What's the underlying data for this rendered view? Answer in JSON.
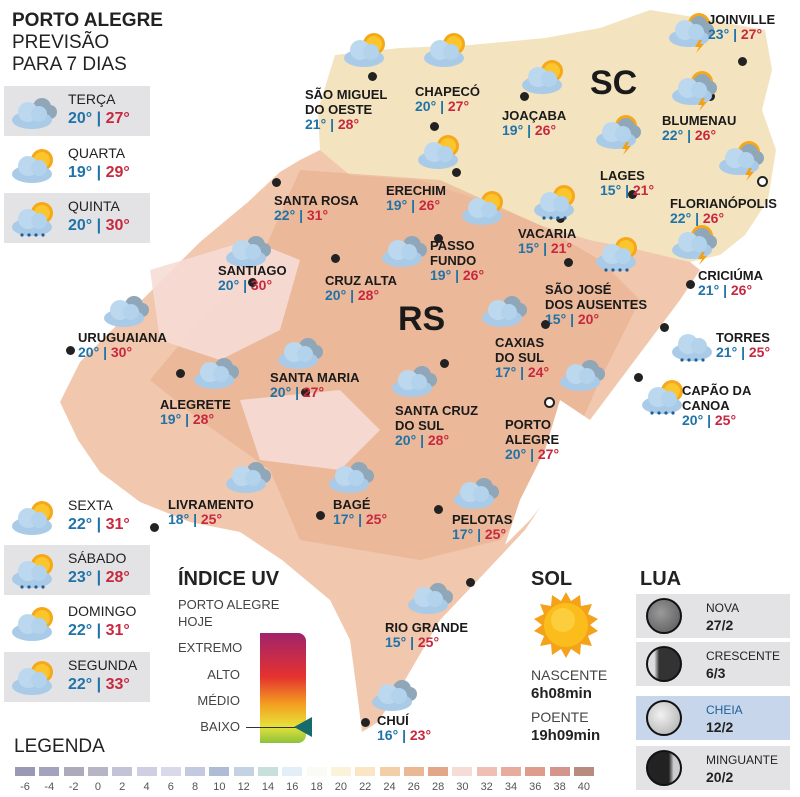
{
  "header": {
    "line1": "PORTO ALEGRE",
    "line2": "PREVISÃO",
    "line3": "PARA 7 DIAS"
  },
  "days": [
    {
      "name": "TERÇA",
      "min": "20°",
      "max": "27°",
      "icon": "cloudy"
    },
    {
      "name": "QUARTA",
      "min": "19°",
      "max": "29°",
      "icon": "sun-cloud"
    },
    {
      "name": "QUINTA",
      "min": "20°",
      "max": "30°",
      "icon": "sun-rain"
    },
    {
      "name": "SEXTA",
      "min": "22°",
      "max": "31°",
      "icon": "sun-cloud"
    },
    {
      "name": "SÁBADO",
      "min": "23°",
      "max": "28°",
      "icon": "sun-rain"
    },
    {
      "name": "DOMINGO",
      "min": "22°",
      "max": "31°",
      "icon": "sun-cloud"
    },
    {
      "name": "SEGUNDA",
      "min": "22°",
      "max": "33°",
      "icon": "sun-cloud"
    }
  ],
  "regions": {
    "rs": "RS",
    "sc": "SC"
  },
  "cities": [
    {
      "name": "SÃO MIGUEL",
      "name2": "DO OESTE",
      "min": "21°",
      "max": "28°",
      "icon": "sun-cloud"
    },
    {
      "name": "CHAPECÓ",
      "min": "20°",
      "max": "27°",
      "icon": "sun-cloud"
    },
    {
      "name": "JOAÇABA",
      "min": "19°",
      "max": "26°",
      "icon": "sun-cloud"
    },
    {
      "name": "JOINVILLE",
      "min": "23°",
      "max": "27°",
      "icon": "storm"
    },
    {
      "name": "BLUMENAU",
      "min": "22°",
      "max": "26°",
      "icon": "storm"
    },
    {
      "name": "LAGES",
      "min": "15°",
      "max": "21°",
      "icon": "storm"
    },
    {
      "name": "FLORIANÓPOLIS",
      "min": "22°",
      "max": "26°",
      "icon": "storm"
    },
    {
      "name": "SANTA ROSA",
      "min": "22°",
      "max": "31°",
      "icon": "sun-cloud"
    },
    {
      "name": "ERECHIM",
      "min": "19°",
      "max": "26°",
      "icon": "sun-cloud"
    },
    {
      "name": "VACARIA",
      "min": "15°",
      "max": "21°",
      "icon": "sun-rain"
    },
    {
      "name": "PASSO",
      "name2": "FUNDO",
      "min": "19°",
      "max": "26°",
      "icon": "sun-cloud"
    },
    {
      "name": "SANTIAGO",
      "min": "20°",
      "max": "30°",
      "icon": "cloudy"
    },
    {
      "name": "CRUZ ALTA",
      "min": "20°",
      "max": "28°",
      "icon": "cloudy"
    },
    {
      "name": "SÃO JOSÉ",
      "name2": "DOS AUSENTES",
      "min": "15°",
      "max": "20°",
      "icon": "sun-rain"
    },
    {
      "name": "CRICIÚMA",
      "min": "21°",
      "max": "26°",
      "icon": "storm"
    },
    {
      "name": "TORRES",
      "min": "21°",
      "max": "25°",
      "icon": "rain"
    },
    {
      "name": "URUGUAIANA",
      "min": "20°",
      "max": "30°",
      "icon": "cloudy"
    },
    {
      "name": "CAXIAS",
      "name2": "DO SUL",
      "min": "17°",
      "max": "24°",
      "icon": "cloudy"
    },
    {
      "name": "ALEGRETE",
      "min": "19°",
      "max": "28°",
      "icon": "cloudy"
    },
    {
      "name": "SANTA MARIA",
      "min": "20°",
      "max": "27°",
      "icon": "cloudy"
    },
    {
      "name": "SANTA CRUZ",
      "name2": "DO SUL",
      "min": "20°",
      "max": "28°",
      "icon": "cloudy"
    },
    {
      "name": "CAPÃO DA",
      "name2": "CANOA",
      "min": "20°",
      "max": "25°",
      "icon": "sun-rain"
    },
    {
      "name": "PORTO",
      "name2": "ALEGRE",
      "min": "20°",
      "max": "27°",
      "icon": "cloudy"
    },
    {
      "name": "LIVRAMENTO",
      "min": "18°",
      "max": "25°",
      "icon": "cloudy"
    },
    {
      "name": "BAGÉ",
      "min": "17°",
      "max": "25°",
      "icon": "cloudy"
    },
    {
      "name": "PELOTAS",
      "min": "17°",
      "max": "25°",
      "icon": "cloudy"
    },
    {
      "name": "RIO GRANDE",
      "min": "15°",
      "max": "25°",
      "icon": "cloudy"
    },
    {
      "name": "CHUÍ",
      "min": "16°",
      "max": "23°",
      "icon": "cloudy"
    }
  ],
  "uv": {
    "title": "ÍNDICE UV",
    "subtitle1": "PORTO ALEGRE",
    "subtitle2": "HOJE",
    "levels": [
      "EXTREMO",
      "ALTO",
      "MÉDIO",
      "BAIXO"
    ],
    "current": "BAIXO",
    "current_fraction": 0.12
  },
  "sun": {
    "title": "SOL",
    "rise_label": "NASCENTE",
    "rise": "6h08min",
    "set_label": "POENTE",
    "set": "19h09min"
  },
  "moon": {
    "title": "LUA",
    "phases": [
      {
        "name": "NOVA",
        "date": "27/2"
      },
      {
        "name": "CRESCENTE",
        "date": "6/3"
      },
      {
        "name": "CHEIA",
        "date": "12/2",
        "selected": true
      },
      {
        "name": "MINGUANTE",
        "date": "20/2"
      }
    ]
  },
  "legend": {
    "title": "LEGENDA",
    "values": [
      "-6",
      "-4",
      "-2",
      "0",
      "2",
      "4",
      "6",
      "8",
      "10",
      "12",
      "14",
      "16",
      "18",
      "20",
      "22",
      "24",
      "26",
      "28",
      "30",
      "32",
      "34",
      "36",
      "38",
      "40"
    ],
    "colors": [
      "#9a98b4",
      "#a4a3bd",
      "#adaabb",
      "#b6b5c6",
      "#c3c2d6",
      "#cfcee2",
      "#dad9ea",
      "#c3c9df",
      "#afbcd6",
      "#c4d3e4",
      "#c8e0dc",
      "#e4eef6",
      "#fbfbf5",
      "#fbf3d8",
      "#fae6c3",
      "#f3cfa8",
      "#eab895",
      "#e2a688",
      "#f6dcd6",
      "#efbfb4",
      "#e8ac9f",
      "#de9c8d",
      "#d4958c",
      "#b98a7f"
    ]
  }
}
